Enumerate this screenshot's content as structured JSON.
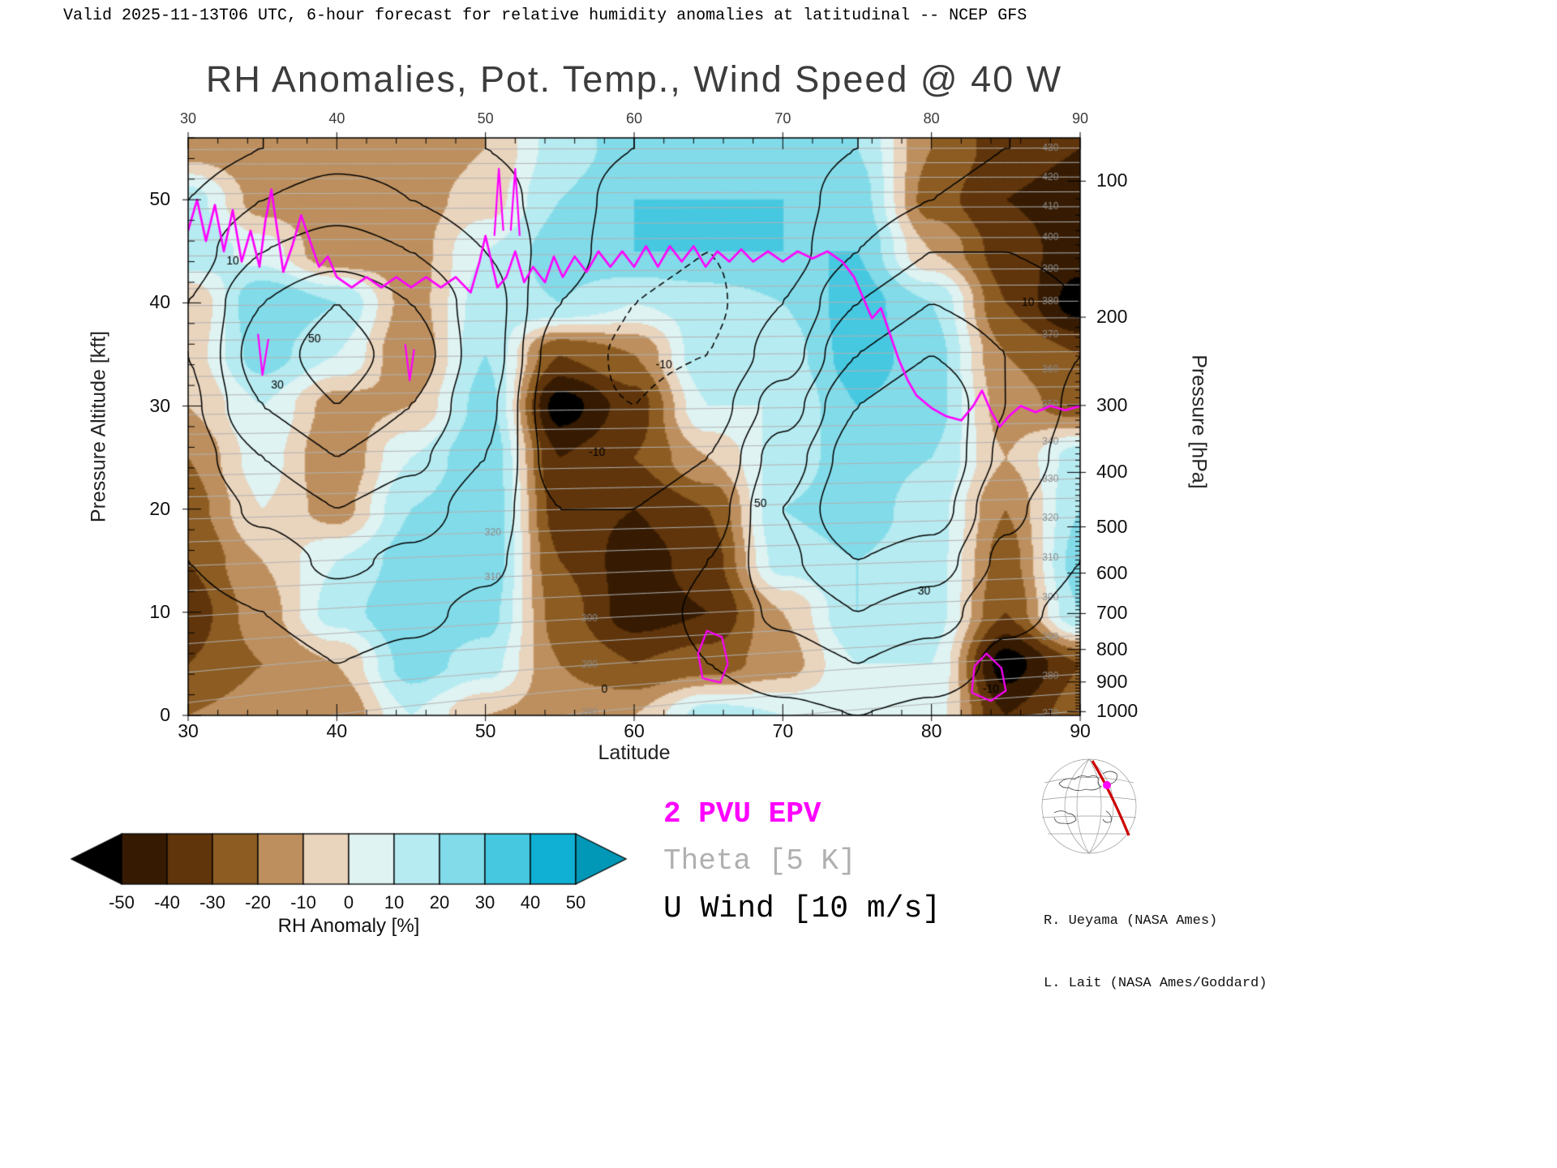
{
  "header": {
    "valid_line": "Valid 2025-11-13T06 UTC, 6-hour forecast for relative humidity anomalies at latitudinal -- NCEP GFS"
  },
  "title": "RH Anomalies, Pot. Temp., Wind Speed @ 40 W",
  "legend": {
    "epv": "2 PVU EPV",
    "theta": "Theta [5 K]",
    "uwind": "U Wind [10 m/s]"
  },
  "colorbar": {
    "label": "RH Anomaly [%]",
    "ticks": [
      -50,
      -40,
      -30,
      -20,
      -10,
      0,
      10,
      20,
      30,
      40,
      50
    ],
    "colors": [
      "#361b02",
      "#60350b",
      "#8c5c22",
      "#bd8f5e",
      "#e9d4bd",
      "#dff3f3",
      "#b6ebf1",
      "#82dbe9",
      "#46c8e1",
      "#0fb0d4"
    ],
    "under": "#000000",
    "over": "#0098b6"
  },
  "credits": [
    "R. Ueyama (NASA Ames)",
    "L. Lait (NASA Ames/Goddard)"
  ],
  "chart_data": {
    "type": "heatmap",
    "title": "RH Anomalies, Pot. Temp., Wind Speed @ 40 W",
    "xlabel": "Latitude",
    "ylabel_left": "Pressure Altitude [kft]",
    "ylabel_right": "Pressure [hPa]",
    "xlim": [
      30,
      90
    ],
    "ylim_kft": [
      0,
      56
    ],
    "x_ticks": [
      30,
      40,
      50,
      60,
      70,
      80,
      90
    ],
    "y_ticks_left": [
      0,
      10,
      20,
      30,
      40,
      50
    ],
    "y_ticks_right": [
      100,
      200,
      300,
      400,
      500,
      600,
      700,
      800,
      900,
      1000
    ],
    "lat_cols": [
      30,
      35,
      40,
      45,
      50,
      55,
      60,
      65,
      70,
      75,
      80,
      85,
      90
    ],
    "alt_rows": [
      55,
      50,
      45,
      40,
      35,
      30,
      25,
      20,
      15,
      10,
      5,
      0
    ],
    "rh_anomaly": [
      [
        -15,
        -20,
        -15,
        -20,
        -10,
        15,
        25,
        25,
        25,
        20,
        -20,
        -35,
        -40
      ],
      [
        15,
        -15,
        -20,
        -15,
        -5,
        20,
        30,
        30,
        30,
        25,
        -25,
        -40,
        -45
      ],
      [
        20,
        5,
        -20,
        -15,
        10,
        25,
        30,
        30,
        30,
        30,
        -10,
        -35,
        -45
      ],
      [
        -10,
        30,
        20,
        -15,
        15,
        20,
        10,
        15,
        20,
        35,
        20,
        -30,
        -55
      ],
      [
        -5,
        25,
        10,
        -20,
        20,
        -30,
        -20,
        20,
        15,
        35,
        25,
        -20,
        -30
      ],
      [
        -10,
        10,
        -15,
        -10,
        25,
        -55,
        -35,
        10,
        10,
        30,
        25,
        -15,
        -25
      ],
      [
        -20,
        5,
        -20,
        10,
        30,
        -40,
        -30,
        -10,
        15,
        25,
        20,
        -10,
        15
      ],
      [
        -25,
        0,
        -15,
        20,
        30,
        -35,
        -40,
        -30,
        20,
        25,
        15,
        -20,
        20
      ],
      [
        -30,
        -10,
        10,
        25,
        30,
        -30,
        -45,
        -35,
        15,
        20,
        15,
        -25,
        25
      ],
      [
        -35,
        -15,
        15,
        30,
        25,
        -25,
        -45,
        -40,
        -10,
        20,
        15,
        -30,
        20
      ],
      [
        -30,
        -20,
        -10,
        25,
        15,
        -20,
        -30,
        -25,
        -15,
        10,
        10,
        -55,
        -30
      ],
      [
        -20,
        -15,
        -20,
        10,
        -10,
        -15,
        -10,
        15,
        10,
        5,
        5,
        -40,
        -25
      ]
    ],
    "rh_band_step": 10,
    "u_wind": [
      [
        5,
        10,
        15,
        15,
        10,
        5,
        0,
        -5,
        -5,
        0,
        5,
        10,
        10
      ],
      [
        10,
        20,
        25,
        20,
        15,
        5,
        -5,
        -8,
        -5,
        5,
        10,
        15,
        15
      ],
      [
        15,
        30,
        35,
        30,
        20,
        5,
        -8,
        -10,
        -5,
        10,
        20,
        20,
        18
      ],
      [
        20,
        40,
        50,
        40,
        25,
        0,
        -10,
        -12,
        0,
        20,
        30,
        25,
        20
      ],
      [
        20,
        45,
        55,
        45,
        25,
        -5,
        -12,
        -10,
        5,
        30,
        40,
        30,
        20
      ],
      [
        18,
        40,
        50,
        40,
        22,
        -8,
        -10,
        -5,
        15,
        40,
        50,
        30,
        18
      ],
      [
        15,
        30,
        40,
        32,
        20,
        -5,
        -5,
        0,
        25,
        45,
        50,
        28,
        15
      ],
      [
        12,
        22,
        30,
        25,
        15,
        0,
        0,
        5,
        30,
        50,
        45,
        22,
        12
      ],
      [
        10,
        15,
        22,
        18,
        12,
        2,
        2,
        10,
        28,
        40,
        35,
        18,
        10
      ],
      [
        8,
        10,
        15,
        12,
        8,
        2,
        5,
        12,
        22,
        30,
        25,
        12,
        8
      ],
      [
        5,
        6,
        10,
        8,
        5,
        2,
        5,
        10,
        15,
        20,
        15,
        8,
        5
      ],
      [
        2,
        3,
        5,
        4,
        2,
        0,
        2,
        5,
        8,
        10,
        8,
        4,
        2
      ]
    ],
    "u_levels": [
      -10,
      0,
      10,
      20,
      30,
      40,
      50
    ],
    "theta_model": {
      "base": 288,
      "lin": 1.6,
      "quad": 0.018,
      "lat_coef": 0.32,
      "lat_scale": 15,
      "level_min": 270,
      "level_max": 430,
      "step": 5
    },
    "theta_inline_labels": [
      {
        "lat": 57,
        "levels": [
          280,
          290,
          300
        ]
      },
      {
        "lat": 50.5,
        "levels": [
          310,
          320
        ]
      },
      {
        "lat": 88,
        "levels": [
          270,
          280,
          290,
          300,
          310,
          320,
          330,
          340,
          350,
          360,
          370,
          380,
          390,
          400,
          410,
          420,
          430
        ]
      }
    ],
    "u_labels": [
      {
        "t": "50",
        "lat": 38.5,
        "alt": 36.5
      },
      {
        "t": "30",
        "lat": 36,
        "alt": 32
      },
      {
        "t": "-10",
        "lat": 57.5,
        "alt": 25.5
      },
      {
        "t": "-10",
        "lat": 62,
        "alt": 34
      },
      {
        "t": "50",
        "lat": 68.5,
        "alt": 20.5
      },
      {
        "t": "30",
        "lat": 79.5,
        "alt": 12
      },
      {
        "t": "0",
        "lat": 58,
        "alt": 2.5
      },
      {
        "t": "10",
        "lat": 86.5,
        "alt": 40
      },
      {
        "t": "-10",
        "lat": 84,
        "alt": 2.5
      },
      {
        "t": "10",
        "lat": 33,
        "alt": 44
      }
    ],
    "epv_main": [
      [
        30,
        47
      ],
      [
        30.6,
        50
      ],
      [
        31.2,
        46
      ],
      [
        31.8,
        49.5
      ],
      [
        32.4,
        45
      ],
      [
        33,
        49
      ],
      [
        33.6,
        44
      ],
      [
        34.2,
        47
      ],
      [
        34.8,
        43.5
      ],
      [
        35.2,
        48
      ],
      [
        35.6,
        51
      ],
      [
        36,
        47
      ],
      [
        36.4,
        43
      ],
      [
        37,
        45.5
      ],
      [
        37.6,
        48.5
      ],
      [
        38.2,
        46
      ],
      [
        38.8,
        43.5
      ],
      [
        39.4,
        44.5
      ],
      [
        40,
        42.5
      ],
      [
        41,
        41.5
      ],
      [
        42,
        42.5
      ],
      [
        43,
        41.5
      ],
      [
        44,
        42.5
      ],
      [
        45,
        41.5
      ],
      [
        46,
        42.5
      ],
      [
        47,
        41.5
      ],
      [
        48,
        42.5
      ],
      [
        49,
        41
      ],
      [
        49.6,
        44
      ],
      [
        50,
        46.5
      ],
      [
        50.4,
        44
      ],
      [
        50.8,
        41.5
      ],
      [
        51.4,
        42.5
      ],
      [
        52,
        45
      ],
      [
        52.6,
        42
      ],
      [
        53.2,
        43.5
      ],
      [
        54,
        42
      ],
      [
        54.6,
        44.5
      ],
      [
        55.2,
        42.5
      ],
      [
        56,
        44.5
      ],
      [
        56.8,
        43
      ],
      [
        57.6,
        45
      ],
      [
        58.4,
        43.5
      ],
      [
        59.2,
        45
      ],
      [
        60,
        43.5
      ],
      [
        60.8,
        45.5
      ],
      [
        61.6,
        43.5
      ],
      [
        62.4,
        45.5
      ],
      [
        63.2,
        44
      ],
      [
        64,
        45.5
      ],
      [
        64.8,
        43.5
      ],
      [
        65.6,
        45
      ],
      [
        66.4,
        44
      ],
      [
        67.2,
        45.2
      ],
      [
        68,
        44
      ],
      [
        69,
        45
      ],
      [
        70,
        44
      ],
      [
        71,
        45
      ],
      [
        72,
        44.3
      ],
      [
        73,
        45
      ],
      [
        74,
        44
      ],
      [
        74.8,
        42.5
      ],
      [
        75.4,
        40.5
      ],
      [
        76,
        38.5
      ],
      [
        76.6,
        39.5
      ],
      [
        77.2,
        37
      ],
      [
        77.8,
        34.5
      ],
      [
        78.4,
        32.5
      ],
      [
        79,
        31
      ],
      [
        80,
        29.8
      ],
      [
        81,
        29
      ],
      [
        82,
        28.6
      ],
      [
        82.8,
        30
      ],
      [
        83.4,
        31.5
      ],
      [
        84,
        29.5
      ],
      [
        84.6,
        28
      ],
      [
        85.2,
        29
      ],
      [
        86,
        30
      ],
      [
        87,
        29.4
      ],
      [
        88,
        30
      ],
      [
        89,
        29.6
      ],
      [
        90,
        30
      ]
    ],
    "epv_loops": [
      [
        [
          64.6,
          3.6
        ],
        [
          64.3,
          6
        ],
        [
          64.9,
          8.2
        ],
        [
          65.9,
          7.6
        ],
        [
          66.3,
          5
        ],
        [
          65.8,
          3.2
        ],
        [
          64.6,
          3.6
        ]
      ],
      [
        [
          82.7,
          2.2
        ],
        [
          82.9,
          4.8
        ],
        [
          83.7,
          6
        ],
        [
          84.7,
          4.6
        ],
        [
          85,
          2.4
        ],
        [
          84,
          1.4
        ],
        [
          82.7,
          2.2
        ]
      ],
      [
        [
          50.6,
          46.5
        ],
        [
          50.9,
          53
        ],
        [
          51.2,
          47
        ]
      ],
      [
        [
          51.7,
          47
        ],
        [
          52,
          53
        ],
        [
          52.3,
          46.5
        ]
      ],
      [
        [
          34.7,
          37
        ],
        [
          35,
          33
        ],
        [
          35.4,
          36.5
        ]
      ],
      [
        [
          44.6,
          36
        ],
        [
          44.9,
          32.5
        ],
        [
          45.2,
          35.5
        ]
      ]
    ]
  }
}
